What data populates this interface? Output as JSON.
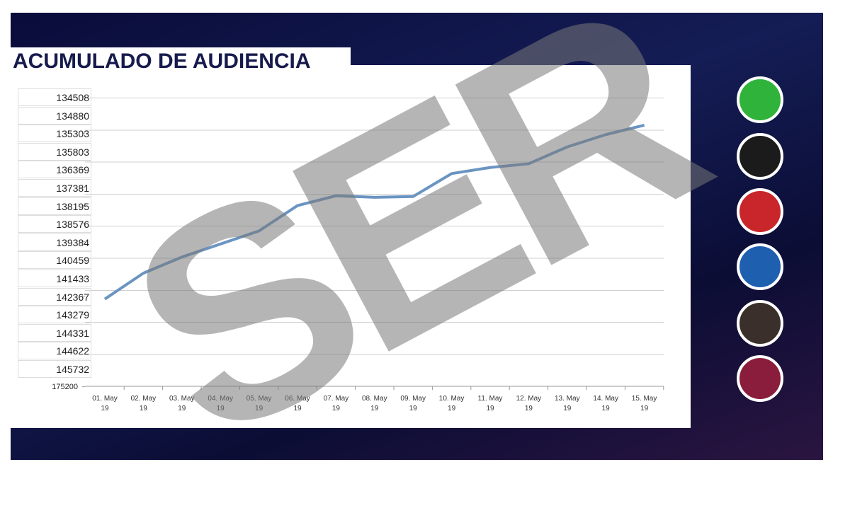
{
  "chart_data": {
    "type": "line",
    "title": "ACUMULADO DE AUDIENCIA",
    "watermark": "SER",
    "categories": [
      "01. May 19",
      "02. May 19",
      "03. May 19",
      "04. May 19",
      "05. May 19",
      "06. May 19",
      "07. May 19",
      "08. May 19",
      "09. May 19",
      "10. May 19",
      "11. May 19",
      "12. May 19",
      "13. May 19",
      "14. May 19",
      "15. May 19"
    ],
    "series": [
      {
        "color": "#6a94c2",
        "values": [
          142513,
          141171,
          140287,
          139513,
          138899,
          138195,
          137754,
          137822,
          137788,
          136603,
          136310,
          136193,
          135683,
          135343,
          135117
        ]
      }
    ],
    "yticks": [
      134508,
      134880,
      135303,
      135803,
      136369,
      137381,
      138195,
      138576,
      139384,
      140459,
      141433,
      142367,
      143279,
      144331,
      144622,
      145732,
      175200
    ],
    "ylim": [
      134508,
      175200
    ]
  }
}
